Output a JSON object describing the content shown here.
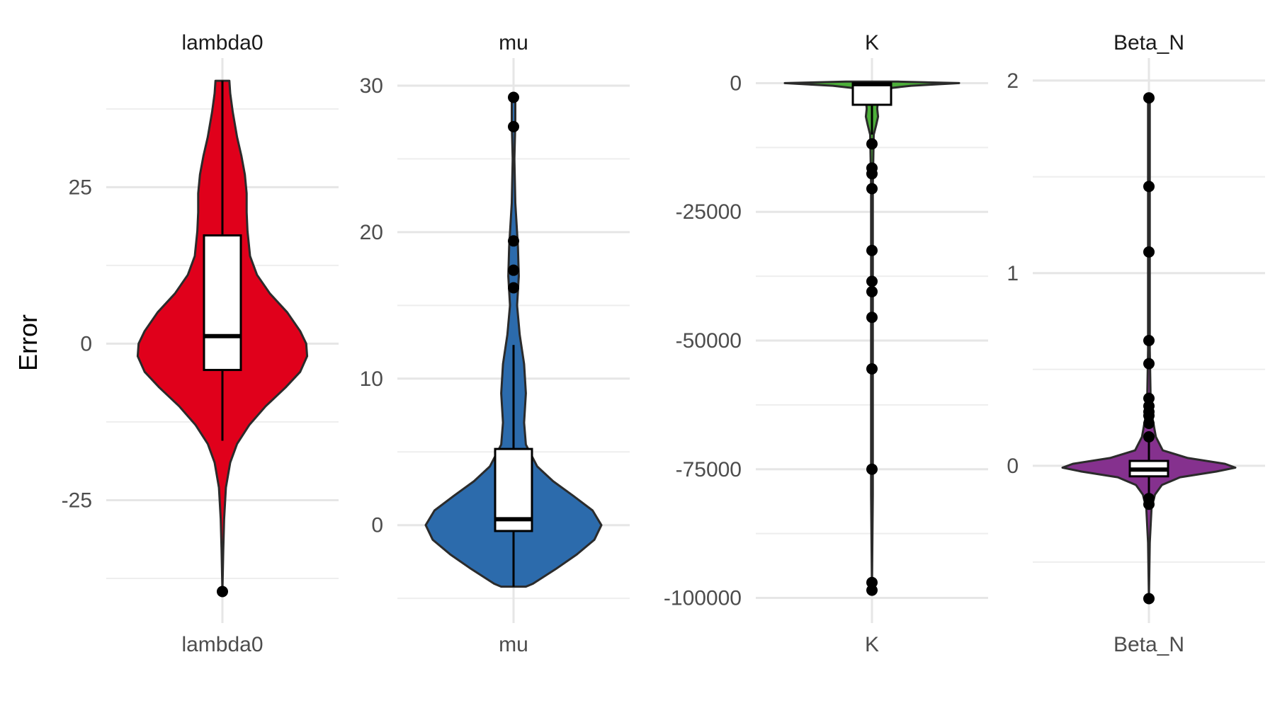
{
  "chart_data": {
    "type": "violin",
    "ylabel": "Error",
    "panels": [
      {
        "name": "lambda0",
        "title": "lambda0",
        "x_tick": "lambda0",
        "fill": "#E0001B",
        "ylim": [
          -43.5,
          44.5
        ],
        "y_ticks": [
          -25,
          0,
          25
        ],
        "y_tick_labels": [
          "-25",
          "0",
          "25"
        ],
        "y_minor": [
          -37.5,
          -12.5,
          12.5,
          37.5
        ],
        "box": {
          "q1": -4.2,
          "median": 1.2,
          "q3": 17.3,
          "whisker_low": -15.5,
          "whisker_high": 42.0
        },
        "outliers": [
          -39.6
        ],
        "violin": [
          [
            42.0,
            0.08
          ],
          [
            40.0,
            0.09
          ],
          [
            37.0,
            0.12
          ],
          [
            33.0,
            0.17
          ],
          [
            30.0,
            0.22
          ],
          [
            27.0,
            0.26
          ],
          [
            24.0,
            0.28
          ],
          [
            21.0,
            0.28
          ],
          [
            18.0,
            0.29
          ],
          [
            14.0,
            0.32
          ],
          [
            11.0,
            0.4
          ],
          [
            8.0,
            0.55
          ],
          [
            5.0,
            0.75
          ],
          [
            2.0,
            0.9
          ],
          [
            0.0,
            0.97
          ],
          [
            -2.0,
            0.98
          ],
          [
            -4.5,
            0.9
          ],
          [
            -7.0,
            0.73
          ],
          [
            -10.0,
            0.5
          ],
          [
            -13.0,
            0.31
          ],
          [
            -16.0,
            0.17
          ],
          [
            -19.0,
            0.09
          ],
          [
            -23.0,
            0.04
          ],
          [
            -28.0,
            0.02
          ],
          [
            -33.0,
            0.01
          ],
          [
            -39.6,
            0.0
          ]
        ]
      },
      {
        "name": "mu",
        "title": "mu",
        "x_tick": "mu",
        "fill": "#2C6BAC",
        "ylim": [
          -6.2,
          31.4
        ],
        "y_ticks": [
          0,
          10,
          20,
          30
        ],
        "y_tick_labels": [
          "0",
          "10",
          "20",
          "30"
        ],
        "y_minor": [
          -5,
          5,
          15,
          25
        ],
        "box": {
          "q1": -0.4,
          "median": 0.4,
          "q3": 5.2,
          "whisker_low": -4.2,
          "whisker_high": 12.3
        },
        "outliers": [
          29.2,
          27.2,
          19.4,
          17.4,
          16.2
        ],
        "violin": [
          [
            29.2,
            0.02
          ],
          [
            27.5,
            0.02
          ],
          [
            25.0,
            0.01
          ],
          [
            22.0,
            0.02
          ],
          [
            19.0,
            0.05
          ],
          [
            17.0,
            0.06
          ],
          [
            15.0,
            0.04
          ],
          [
            13.0,
            0.07
          ],
          [
            11.0,
            0.12
          ],
          [
            9.0,
            0.14
          ],
          [
            7.0,
            0.12
          ],
          [
            5.5,
            0.14
          ],
          [
            4.0,
            0.27
          ],
          [
            3.0,
            0.45
          ],
          [
            2.0,
            0.68
          ],
          [
            1.0,
            0.9
          ],
          [
            0.0,
            1.0
          ],
          [
            -1.0,
            0.92
          ],
          [
            -2.0,
            0.72
          ],
          [
            -3.0,
            0.48
          ],
          [
            -4.0,
            0.22
          ],
          [
            -4.2,
            0.14
          ]
        ]
      },
      {
        "name": "K",
        "title": "K",
        "x_tick": "K",
        "fill": "#4DAF3A",
        "ylim": [
          -103500,
          3500
        ],
        "y_ticks": [
          -100000,
          -75000,
          -50000,
          -25000,
          0
        ],
        "y_tick_labels": [
          "-100000",
          "-75000",
          "-50000",
          "-25000",
          "0"
        ],
        "y_minor": [
          -87500,
          -62500,
          -37500,
          -12500
        ],
        "box": {
          "q1": -4200,
          "median": -200,
          "q3": 0,
          "whisker_low": -10000,
          "whisker_high": 0
        },
        "outliers": [
          -11800,
          -16500,
          -17600,
          -20500,
          -32500,
          -38500,
          -40500,
          -45500,
          -55500,
          -75000,
          -97000,
          -98500
        ],
        "violin": [
          [
            300,
            0.3
          ],
          [
            0,
            1.0
          ],
          [
            -500,
            0.45
          ],
          [
            -1200,
            0.08
          ],
          [
            -3000,
            0.07
          ],
          [
            -5000,
            0.06
          ],
          [
            -6500,
            0.07
          ],
          [
            -8000,
            0.05
          ],
          [
            -10000,
            0.02
          ],
          [
            -20000,
            0.01
          ],
          [
            -40000,
            0.01
          ],
          [
            -60000,
            0.01
          ],
          [
            -80000,
            0.01
          ],
          [
            -98500,
            0.0
          ]
        ]
      },
      {
        "name": "Beta_N",
        "title": "Beta_N",
        "x_tick": "Beta_N",
        "fill": "#85318E",
        "ylim": [
          -0.78,
          2.08
        ],
        "y_ticks": [
          0,
          1,
          2
        ],
        "y_tick_labels": [
          "0",
          "1",
          "2"
        ],
        "y_minor": [
          -0.5,
          0.5,
          1.5
        ],
        "box": {
          "q1": -0.055,
          "median": -0.02,
          "q3": 0.025,
          "whisker_low": -0.16,
          "whisker_high": 0.13
        },
        "outliers": [
          1.91,
          1.45,
          1.11,
          0.65,
          0.53,
          0.35,
          0.31,
          0.28,
          0.26,
          0.22,
          0.15,
          -0.17,
          -0.2,
          -0.69
        ],
        "violin": [
          [
            1.91,
            0.01
          ],
          [
            1.0,
            0.01
          ],
          [
            0.6,
            0.01
          ],
          [
            0.35,
            0.02
          ],
          [
            0.25,
            0.04
          ],
          [
            0.15,
            0.08
          ],
          [
            0.08,
            0.16
          ],
          [
            0.04,
            0.45
          ],
          [
            0.01,
            0.88
          ],
          [
            -0.01,
            1.0
          ],
          [
            -0.03,
            0.78
          ],
          [
            -0.06,
            0.36
          ],
          [
            -0.1,
            0.15
          ],
          [
            -0.15,
            0.07
          ],
          [
            -0.22,
            0.03
          ],
          [
            -0.4,
            0.01
          ],
          [
            -0.69,
            0.0
          ]
        ]
      }
    ]
  }
}
